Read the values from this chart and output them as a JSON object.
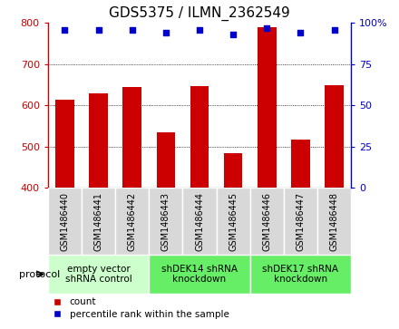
{
  "title": "GDS5375 / ILMN_2362549",
  "samples": [
    "GSM1486440",
    "GSM1486441",
    "GSM1486442",
    "GSM1486443",
    "GSM1486444",
    "GSM1486445",
    "GSM1486446",
    "GSM1486447",
    "GSM1486448"
  ],
  "counts": [
    615,
    630,
    645,
    535,
    648,
    485,
    790,
    518,
    650
  ],
  "percentiles": [
    96,
    96,
    96,
    94,
    96,
    93,
    97,
    94,
    96
  ],
  "ylim_left": [
    400,
    800
  ],
  "ylim_right": [
    0,
    100
  ],
  "yticks_left": [
    400,
    500,
    600,
    700,
    800
  ],
  "yticks_right": [
    0,
    25,
    50,
    75,
    100
  ],
  "bar_color": "#cc0000",
  "dot_color": "#0000cc",
  "groups": [
    {
      "label": "empty vector\nshRNA control",
      "indices": [
        0,
        1,
        2
      ],
      "color": "#ccffcc"
    },
    {
      "label": "shDEK14 shRNA\nknockdown",
      "indices": [
        3,
        4,
        5
      ],
      "color": "#66ee66"
    },
    {
      "label": "shDEK17 shRNA\nknockdown",
      "indices": [
        6,
        7,
        8
      ],
      "color": "#66ee66"
    }
  ],
  "sample_box_color": "#d8d8d8",
  "protocol_label": "protocol",
  "legend_count_label": "count",
  "legend_pct_label": "percentile rank within the sample",
  "plot_bg_color": "#ffffff",
  "title_fontsize": 11,
  "tick_fontsize": 8,
  "sample_fontsize": 7,
  "group_fontsize": 7.5
}
